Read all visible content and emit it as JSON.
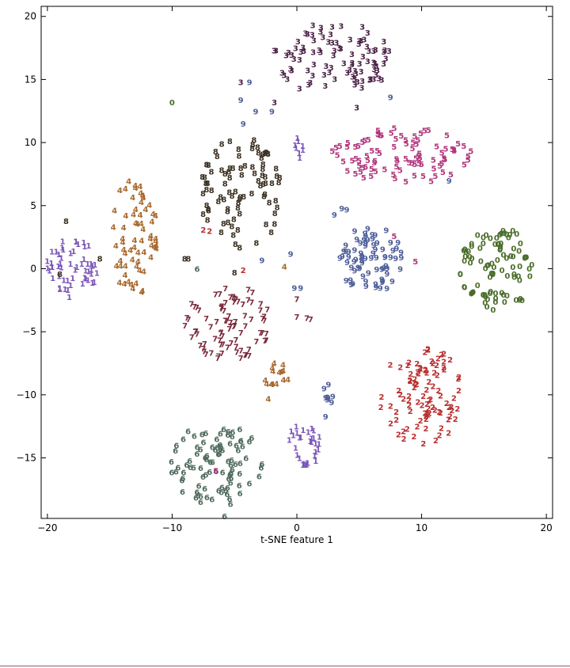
{
  "chart_data": {
    "type": "scatter",
    "title": "",
    "xlabel": "t-SNE feature 1",
    "ylabel": "",
    "xlim": [
      -20.5,
      20.5
    ],
    "ylim": [
      -19.8,
      20.8
    ],
    "xticks": [
      -20,
      -10,
      0,
      10,
      20
    ],
    "yticks": [
      20,
      15,
      10,
      5,
      0,
      -5,
      -10,
      -15
    ],
    "xtick_labels": [
      "−20",
      "−10",
      "0",
      "10",
      "20"
    ],
    "ytick_labels": [
      "20",
      "15",
      "10",
      "5",
      "0",
      "−5",
      "−10",
      "−15"
    ],
    "grid": false,
    "marker": "digit labels",
    "colors": {
      "0": "#4a6d2a",
      "1": "#7b55b8",
      "2": "#b82e2e",
      "3": "#4a1f45",
      "4": "#a8682c",
      "5": "#b0357c",
      "6": "#4e6a5c",
      "7": "#7a2a3a",
      "8": "#3a3020",
      "9": "#4e5f9a"
    },
    "clusters": [
      {
        "label": "0",
        "cx": 16.0,
        "cy": 0.0,
        "rx": 3.0,
        "ry": 3.4,
        "n": 95
      },
      {
        "label": "1",
        "cx": -18.0,
        "cy": 0.0,
        "rx": 2.1,
        "ry": 2.4,
        "n": 55
      },
      {
        "label": "1",
        "cx": 0.6,
        "cy": -14.0,
        "rx": 1.3,
        "ry": 2.0,
        "n": 30
      },
      {
        "label": "1",
        "cx": 0.2,
        "cy": 9.7,
        "rx": 0.4,
        "ry": 0.9,
        "n": 8
      },
      {
        "label": "2",
        "cx": 10.0,
        "cy": -10.0,
        "rx": 3.4,
        "ry": 4.0,
        "n": 95
      },
      {
        "label": "3",
        "cx": 3.0,
        "cy": 16.8,
        "rx": 5.0,
        "ry": 2.8,
        "n": 95
      },
      {
        "label": "4",
        "cx": -13.0,
        "cy": 2.5,
        "rx": 1.8,
        "ry": 5.0,
        "n": 65
      },
      {
        "label": "4",
        "cx": -1.6,
        "cy": -8.5,
        "rx": 1.0,
        "ry": 1.1,
        "n": 14
      },
      {
        "label": "5",
        "cx": 8.5,
        "cy": 9.0,
        "rx": 5.8,
        "ry": 2.2,
        "n": 95
      },
      {
        "label": "6",
        "cx": -6.5,
        "cy": -15.5,
        "rx": 3.8,
        "ry": 3.3,
        "n": 95
      },
      {
        "label": "7",
        "cx": -5.5,
        "cy": -4.3,
        "rx": 3.5,
        "ry": 3.0,
        "n": 85
      },
      {
        "label": "8",
        "cx": -4.5,
        "cy": 6.0,
        "rx": 3.3,
        "ry": 4.6,
        "n": 90
      },
      {
        "label": "9",
        "cx": 6.0,
        "cy": 0.8,
        "rx": 2.8,
        "ry": 2.6,
        "n": 75
      },
      {
        "label": "9",
        "cx": 2.5,
        "cy": -10.0,
        "rx": 0.4,
        "ry": 1.2,
        "n": 8
      }
    ],
    "singletons": [
      {
        "label": "0",
        "x": -10.0,
        "y": 13.2
      },
      {
        "label": "9",
        "x": -3.3,
        "y": 12.5
      },
      {
        "label": "9",
        "x": -2.0,
        "y": 12.5
      },
      {
        "label": "9",
        "x": -4.3,
        "y": 11.5
      },
      {
        "label": "9",
        "x": -4.5,
        "y": 13.4
      },
      {
        "label": "9",
        "x": -3.8,
        "y": 14.8
      },
      {
        "label": "9",
        "x": 7.5,
        "y": 13.6
      },
      {
        "label": "3",
        "x": -1.8,
        "y": 13.2
      },
      {
        "label": "3",
        "x": 0.2,
        "y": 14.3
      },
      {
        "label": "3",
        "x": -4.5,
        "y": 14.8
      },
      {
        "label": "3",
        "x": 4.8,
        "y": 12.8
      },
      {
        "label": "2",
        "x": -7.0,
        "y": 3.0
      },
      {
        "label": "2",
        "x": -7.5,
        "y": 3.1
      },
      {
        "label": "2",
        "x": -4.3,
        "y": -0.1
      },
      {
        "label": "8",
        "x": -18.5,
        "y": 3.8
      },
      {
        "label": "8",
        "x": -15.8,
        "y": 0.8
      },
      {
        "label": "8",
        "x": -19.0,
        "y": -0.4
      },
      {
        "label": "8",
        "x": -8.7,
        "y": 0.8
      },
      {
        "label": "8",
        "x": -9.0,
        "y": 0.8
      },
      {
        "label": "8",
        "x": -5.0,
        "y": -0.3
      },
      {
        "label": "8",
        "x": -2.0,
        "y": 6.8
      },
      {
        "label": "6",
        "x": -8.0,
        "y": 0.0
      },
      {
        "label": "6",
        "x": -5.8,
        "y": -19.6
      },
      {
        "label": "4",
        "x": -1.0,
        "y": 0.2
      },
      {
        "label": "4",
        "x": -2.3,
        "y": -10.3
      },
      {
        "label": "9",
        "x": -2.8,
        "y": 0.7
      },
      {
        "label": "9",
        "x": -0.5,
        "y": 1.2
      },
      {
        "label": "9",
        "x": -0.2,
        "y": -1.5
      },
      {
        "label": "9",
        "x": 0.3,
        "y": -1.5
      },
      {
        "label": "9",
        "x": 3.0,
        "y": 4.3
      },
      {
        "label": "9",
        "x": 3.6,
        "y": 4.8
      },
      {
        "label": "9",
        "x": 4.0,
        "y": 4.7
      },
      {
        "label": "9",
        "x": 12.2,
        "y": 7.0
      },
      {
        "label": "5",
        "x": 7.8,
        "y": 2.6
      },
      {
        "label": "5",
        "x": 9.5,
        "y": 0.6
      },
      {
        "label": "5",
        "x": -6.5,
        "y": -16.0
      },
      {
        "label": "7",
        "x": 0.0,
        "y": -2.4
      },
      {
        "label": "7",
        "x": 0.0,
        "y": -3.8
      },
      {
        "label": "7",
        "x": 0.8,
        "y": -3.9
      },
      {
        "label": "7",
        "x": 1.1,
        "y": -4.0
      },
      {
        "label": "1",
        "x": 0.2,
        "y": -15.0
      },
      {
        "label": "9",
        "x": 2.3,
        "y": -11.7
      }
    ]
  }
}
